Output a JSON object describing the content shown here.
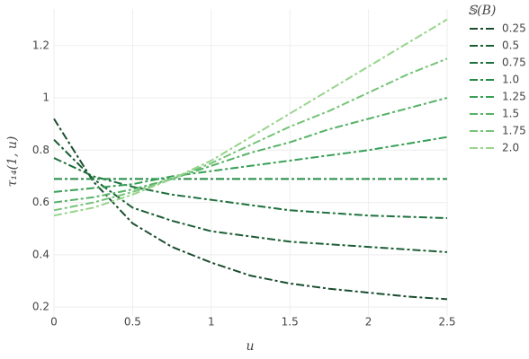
{
  "chart_data": {
    "type": "line",
    "x_label": "u",
    "y_label": "τ₁₄(1, u)",
    "legend_title": "𝕊(B)",
    "x": [
      0,
      0.25,
      0.5,
      0.75,
      1.0,
      1.25,
      1.5,
      1.75,
      2.0,
      2.25,
      2.5
    ],
    "xlim": [
      0,
      2.5
    ],
    "ylim": [
      0.166,
      1.34
    ],
    "xticks": [
      0,
      0.5,
      1,
      1.5,
      2,
      2.5
    ],
    "yticks": [
      0.2,
      0.4,
      0.6,
      0.8,
      1,
      1.2
    ],
    "grid": true,
    "legend_position": "right",
    "series": [
      {
        "name": "0.25",
        "color": "#1a4d2e",
        "values": [
          0.92,
          0.68,
          0.52,
          0.43,
          0.37,
          0.32,
          0.29,
          0.27,
          0.255,
          0.24,
          0.23
        ]
      },
      {
        "name": "0.5",
        "color": "#1b5e34",
        "values": [
          0.84,
          0.69,
          0.58,
          0.53,
          0.49,
          0.47,
          0.45,
          0.44,
          0.43,
          0.42,
          0.41
        ]
      },
      {
        "name": "0.75",
        "color": "#1d713c",
        "values": [
          0.77,
          0.7,
          0.66,
          0.63,
          0.61,
          0.59,
          0.57,
          0.56,
          0.55,
          0.545,
          0.54
        ]
      },
      {
        "name": "1.0",
        "color": "#238b45",
        "values": [
          0.69,
          0.69,
          0.69,
          0.69,
          0.69,
          0.69,
          0.69,
          0.69,
          0.69,
          0.69,
          0.69
        ]
      },
      {
        "name": "1.25",
        "color": "#37a055",
        "values": [
          0.64,
          0.655,
          0.67,
          0.7,
          0.72,
          0.74,
          0.76,
          0.78,
          0.8,
          0.825,
          0.85
        ]
      },
      {
        "name": "1.5",
        "color": "#55b266",
        "values": [
          0.6,
          0.62,
          0.65,
          0.69,
          0.74,
          0.79,
          0.83,
          0.88,
          0.92,
          0.96,
          1.0
        ]
      },
      {
        "name": "1.75",
        "color": "#74c377",
        "values": [
          0.57,
          0.6,
          0.64,
          0.69,
          0.75,
          0.82,
          0.89,
          0.95,
          1.02,
          1.09,
          1.15
        ]
      },
      {
        "name": "2.0",
        "color": "#98d48c",
        "values": [
          0.55,
          0.58,
          0.63,
          0.69,
          0.76,
          0.85,
          0.94,
          1.03,
          1.12,
          1.21,
          1.3
        ]
      }
    ]
  }
}
